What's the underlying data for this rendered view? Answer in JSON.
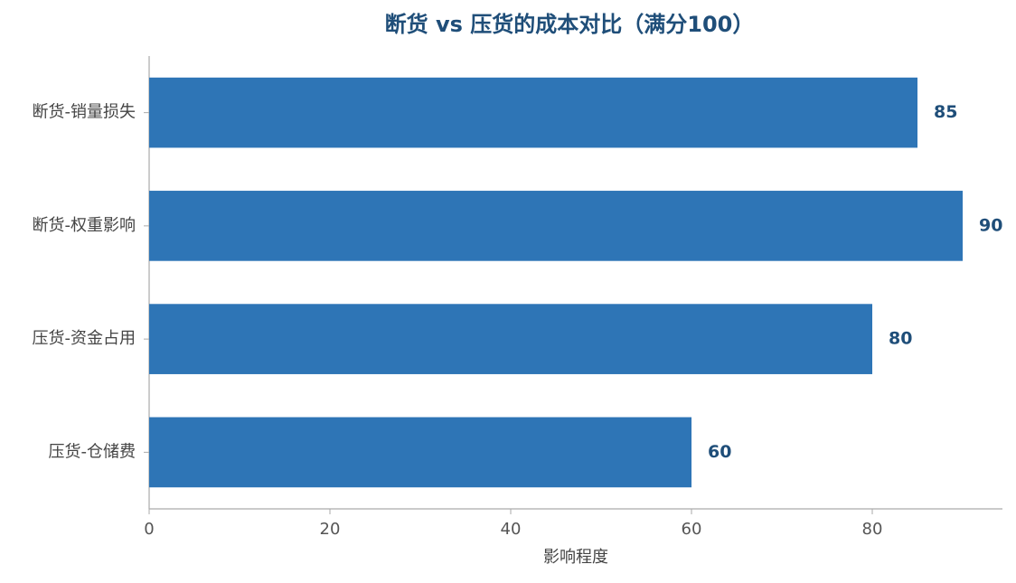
{
  "chart_data": {
    "type": "bar",
    "orientation": "horizontal",
    "title": "断货 vs 压货的成本对比（满分100）",
    "categories": [
      "断货-销量损失",
      "断货-权重影响",
      "压货-资金占用",
      "压货-仓储费"
    ],
    "values": [
      85,
      90,
      80,
      60
    ],
    "color": "#2e75b6",
    "x_label": "影响程度",
    "xlim": [
      0,
      94.4
    ],
    "xticks": [
      0,
      20,
      40,
      60,
      80
    ],
    "grid": false
  }
}
